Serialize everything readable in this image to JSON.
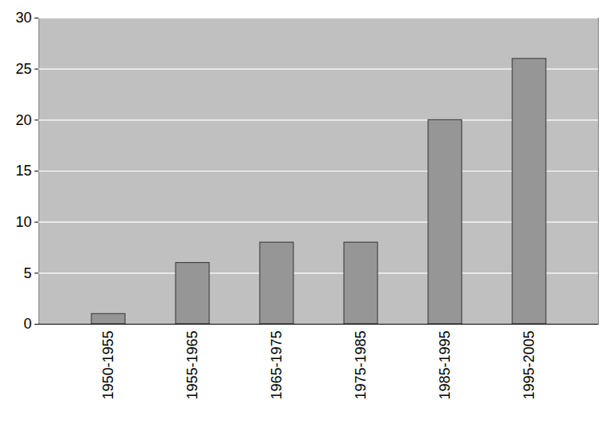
{
  "chart_data": {
    "type": "bar",
    "categories": [
      "1950-1955",
      "1955-1965",
      "1965-1975",
      "1975-1985",
      "1985-1995",
      "1995-2005"
    ],
    "values": [
      1,
      6,
      8,
      8,
      20,
      26
    ],
    "color": "#969696",
    "ylim": [
      0,
      30
    ],
    "yticks": [
      0,
      5,
      10,
      15,
      20,
      25,
      30
    ],
    "grid": true
  }
}
